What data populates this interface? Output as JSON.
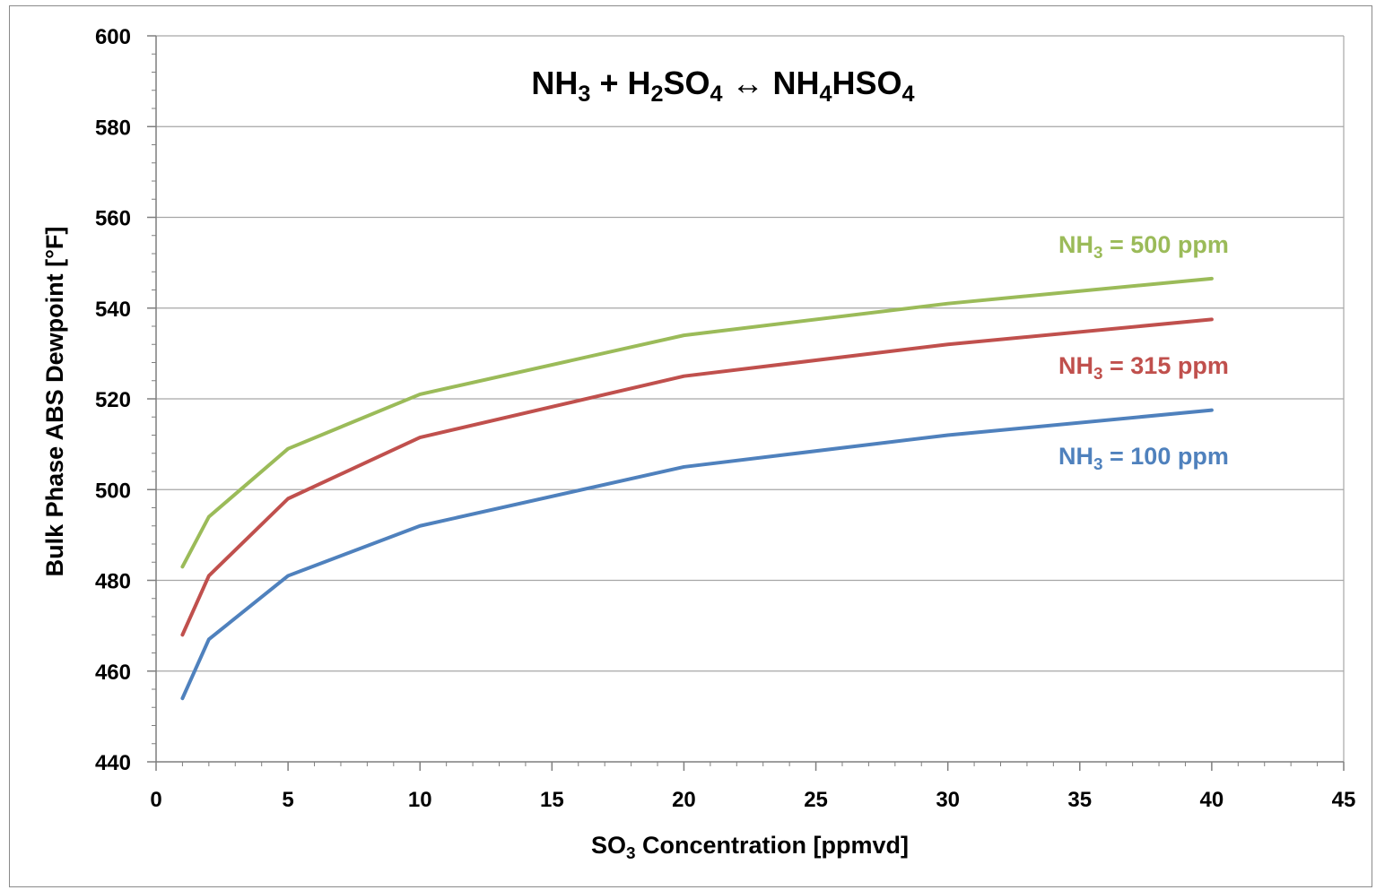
{
  "chart_data": {
    "type": "line",
    "title": {
      "parts": [
        {
          "t": "NH",
          "sub": "3"
        },
        {
          "t": " + H",
          "sub": "2"
        },
        {
          "t": "SO",
          "sub": "4"
        },
        {
          "t": " ↔ NH",
          "sub": "4"
        },
        {
          "t": "HSO",
          "sub": "4"
        }
      ]
    },
    "xlabel": {
      "parts": [
        {
          "t": "SO",
          "sub": "3"
        },
        {
          "t": " Concentration [ppmvd]",
          "sub": ""
        }
      ]
    },
    "ylabel": "Bulk Phase ABS Dewpoint [°F]",
    "xlim": [
      0,
      45
    ],
    "ylim": [
      440,
      600
    ],
    "xticks": [
      0,
      5,
      10,
      15,
      20,
      25,
      30,
      35,
      40,
      45
    ],
    "yticks": [
      440,
      460,
      480,
      500,
      520,
      540,
      560,
      580,
      600
    ],
    "grid": "horizontal major",
    "series": [
      {
        "name": {
          "parts": [
            {
              "t": "NH",
              "sub": "3"
            },
            {
              "t": " = 500 ppm",
              "sub": ""
            }
          ]
        },
        "color": "#9bbb59",
        "x": [
          1,
          2,
          5,
          10,
          20,
          30,
          40
        ],
        "y": [
          483,
          494,
          509,
          521,
          534,
          541,
          546.5
        ]
      },
      {
        "name": {
          "parts": [
            {
              "t": "NH",
              "sub": "3"
            },
            {
              "t": " = 315 ppm",
              "sub": ""
            }
          ]
        },
        "color": "#c0504d",
        "x": [
          1,
          2,
          5,
          10,
          20,
          30,
          40
        ],
        "y": [
          468,
          481,
          498,
          511.5,
          525,
          532,
          537.5
        ]
      },
      {
        "name": {
          "parts": [
            {
              "t": "NH",
              "sub": "3"
            },
            {
              "t": " = 100 ppm",
              "sub": ""
            }
          ]
        },
        "color": "#4f81bd",
        "x": [
          1,
          2,
          5,
          10,
          20,
          30,
          40
        ],
        "y": [
          454,
          467,
          481,
          492,
          505,
          512,
          517.5
        ]
      }
    ]
  }
}
